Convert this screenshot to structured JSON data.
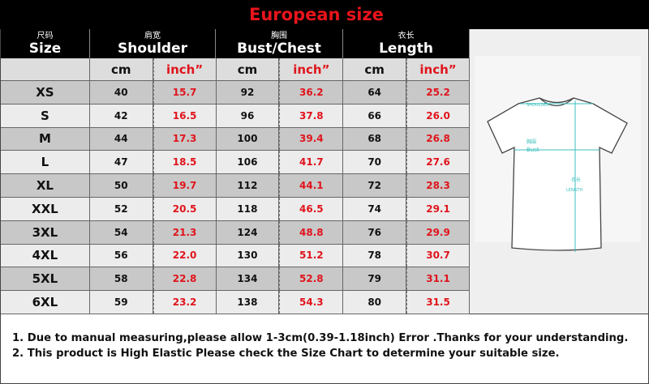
{
  "title": "European size",
  "header": {
    "size": {
      "zh": "尺码",
      "en": "Size"
    },
    "shoulder": {
      "zh": "肩宽",
      "en": "Shoulder"
    },
    "bust": {
      "zh": "胸围",
      "en": "Bust/Chest"
    },
    "length": {
      "zh": "衣长",
      "en": "Length"
    },
    "unit_cm": "cm",
    "unit_inch": "inch”"
  },
  "rows": [
    {
      "size": "XS",
      "shoulder_cm": "40",
      "shoulder_in": "15.7",
      "bust_cm": "92",
      "bust_in": "36.2",
      "length_cm": "64",
      "length_in": "25.2"
    },
    {
      "size": "S",
      "shoulder_cm": "42",
      "shoulder_in": "16.5",
      "bust_cm": "96",
      "bust_in": "37.8",
      "length_cm": "66",
      "length_in": "26.0"
    },
    {
      "size": "M",
      "shoulder_cm": "44",
      "shoulder_in": "17.3",
      "bust_cm": "100",
      "bust_in": "39.4",
      "length_cm": "68",
      "length_in": "26.8"
    },
    {
      "size": "L",
      "shoulder_cm": "47",
      "shoulder_in": "18.5",
      "bust_cm": "106",
      "bust_in": "41.7",
      "length_cm": "70",
      "length_in": "27.6"
    },
    {
      "size": "XL",
      "shoulder_cm": "50",
      "shoulder_in": "19.7",
      "bust_cm": "112",
      "bust_in": "44.1",
      "length_cm": "72",
      "length_in": "28.3"
    },
    {
      "size": "XXL",
      "shoulder_cm": "52",
      "shoulder_in": "20.5",
      "bust_cm": "118",
      "bust_in": "46.5",
      "length_cm": "74",
      "length_in": "29.1"
    },
    {
      "size": "3XL",
      "shoulder_cm": "54",
      "shoulder_in": "21.3",
      "bust_cm": "124",
      "bust_in": "48.8",
      "length_cm": "76",
      "length_in": "29.9"
    },
    {
      "size": "4XL",
      "shoulder_cm": "56",
      "shoulder_in": "22.0",
      "bust_cm": "130",
      "bust_in": "51.2",
      "length_cm": "78",
      "length_in": "30.7"
    },
    {
      "size": "5XL",
      "shoulder_cm": "58",
      "shoulder_in": "22.8",
      "bust_cm": "134",
      "bust_in": "52.8",
      "length_cm": "79",
      "length_in": "31.1"
    },
    {
      "size": "6XL",
      "shoulder_cm": "59",
      "shoulder_in": "23.2",
      "bust_cm": "138",
      "bust_in": "54.3",
      "length_cm": "80",
      "length_in": "31.5"
    }
  ],
  "diagram": {
    "shoulder_label": "SHOULDER",
    "bust_zh": "胸围",
    "bust_en": "Bust",
    "length_zh": "衣长",
    "length_en": "LENGTH",
    "line_color": "#3cbfbf"
  },
  "notes": [
    "1. Due to manual measuring,please allow 1-3cm(0.39-1.18inch) Error .Thanks for your understanding.",
    "2. This product is High Elastic Please check the Size Chart to determine your suitable size."
  ]
}
